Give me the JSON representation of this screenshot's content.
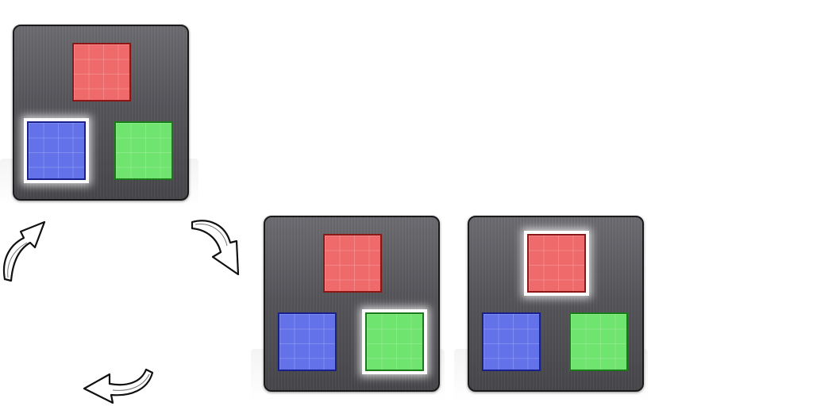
{
  "colors": {
    "red_fill": "#ef6a6a",
    "red_border": "#8c1515",
    "blue_fill": "#6472ea",
    "blue_border": "#17208c",
    "green_fill": "#6fe46f",
    "green_border": "#1a7a1a",
    "panel": "#5a5a5e"
  },
  "panels": [
    {
      "selected": "blue"
    },
    {
      "selected": "green"
    },
    {
      "selected": "red"
    }
  ],
  "arrows": [
    {
      "icon": "curved-arrow-icon",
      "direction": "up-right"
    },
    {
      "icon": "curved-arrow-icon",
      "direction": "down-right"
    },
    {
      "icon": "curved-arrow-icon",
      "direction": "left"
    }
  ]
}
